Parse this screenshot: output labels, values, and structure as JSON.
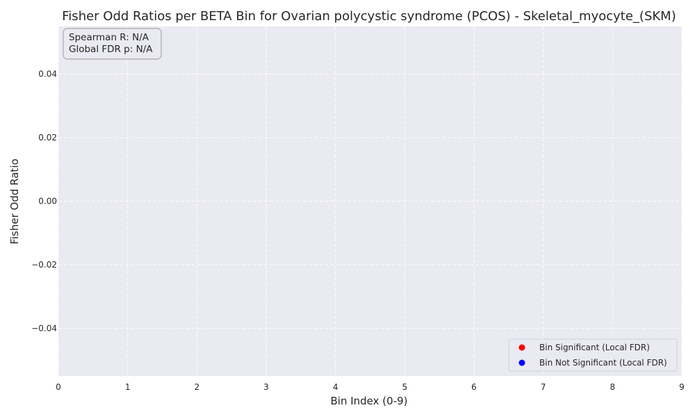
{
  "chart_data": {
    "type": "scatter",
    "title": "Fisher Odd Ratios per BETA Bin for Ovarian polycystic syndrome (PCOS) - Skeletal_myocyte_(SKM)",
    "xlabel": "Bin Index (0-9)",
    "ylabel": "Fisher Odd Ratio",
    "xlim": [
      0,
      9
    ],
    "ylim": [
      -0.055,
      0.055
    ],
    "x_ticks": [
      0,
      1,
      2,
      3,
      4,
      5,
      6,
      7,
      8,
      9
    ],
    "x_tick_labels": [
      "0",
      "1",
      "2",
      "3",
      "4",
      "5",
      "6",
      "7",
      "8",
      "9"
    ],
    "y_ticks": [
      -0.04,
      -0.02,
      0.0,
      0.02,
      0.04
    ],
    "y_tick_labels": [
      "−0.04",
      "−0.02",
      "0.00",
      "0.02",
      "0.04"
    ],
    "grid": true,
    "legend_position": "bottom-right",
    "series": [
      {
        "name": "Bin Significant (Local FDR)",
        "color": "#ff0000",
        "points": []
      },
      {
        "name": "Bin Not Significant (Local FDR)",
        "color": "#0000ff",
        "points": []
      }
    ],
    "annotations": {
      "spearman": "Spearman R: N/A",
      "global_fdr": "Global FDR p: N/A"
    },
    "colors": {
      "plot_background": "#eaeaf2",
      "grid": "#ffffff"
    }
  }
}
